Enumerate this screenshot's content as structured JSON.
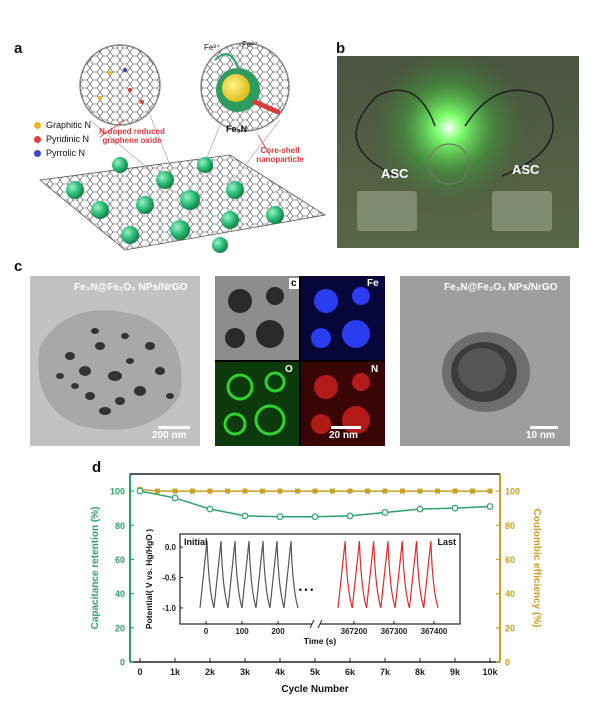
{
  "panels": {
    "a": "a",
    "b": "b",
    "c": "c",
    "d": "d"
  },
  "schematic": {
    "legend": [
      {
        "label": "Graphitic N",
        "color": "#f2b51e"
      },
      {
        "label": "Pyridinic N",
        "color": "#e0433b"
      },
      {
        "label": "Pyrrolic N",
        "color": "#3a46c4"
      }
    ],
    "callout_rgo": "N-doped reduced graphene oxide",
    "callout_np": "Core-shell nanoparticle",
    "core_label": "Fe₃N",
    "shell_label": "Fe₂O₃",
    "ion_left": "Fe³⁺",
    "ion_right": "Fe²⁺"
  },
  "photo": {
    "label_left": "ASC",
    "label_right": "ASC"
  },
  "tem": {
    "left_caption": "Fe₃N@Fe₂O₃ NPs/NrGO",
    "left_scale": "200 nm",
    "eds_inner_letter": "c",
    "eds_labels": [
      "Fe",
      "O",
      "N"
    ],
    "eds_scale": "20 nm",
    "right_caption": "Fe₃N@Fe₂O₃ NPs/NrGO",
    "right_scale": "10 nm"
  },
  "chart_data": [
    {
      "type": "line",
      "xlabel": "Cycle Number",
      "ylabel": "Capacitance retention (%)",
      "y2label": "Coulombic efficiency (%)",
      "x_ticks": [
        "0",
        "1k",
        "2k",
        "3k",
        "4k",
        "5k",
        "6k",
        "7k",
        "8k",
        "9k",
        "10k"
      ],
      "ylim": [
        0,
        110
      ],
      "y_ticks": [
        0,
        20,
        40,
        60,
        80,
        100
      ],
      "y2lim": [
        0,
        110
      ],
      "y2_ticks": [
        0,
        20,
        40,
        60,
        80,
        100
      ],
      "colors": {
        "retention": "#2aa36a",
        "efficiency": "#c9a027"
      },
      "series": [
        {
          "axis": "left",
          "x": [
            0,
            1000,
            2000,
            3000,
            4000,
            5000,
            6000,
            7000,
            8000,
            9000,
            10000
          ],
          "values": [
            100,
            96,
            89.5,
            85.5,
            85,
            85,
            85.5,
            87.5,
            89.5,
            90,
            91
          ]
        },
        {
          "axis": "right",
          "x": [
            0,
            500,
            1000,
            1500,
            2000,
            2500,
            3000,
            3500,
            4000,
            4500,
            5000,
            5500,
            6000,
            6500,
            7000,
            7500,
            8000,
            8500,
            9000,
            9500,
            10000
          ],
          "values": [
            101,
            100,
            100,
            100,
            100,
            100,
            100,
            100,
            100,
            100,
            100,
            100,
            100,
            100,
            100,
            100,
            100,
            100,
            100,
            100,
            100
          ]
        }
      ]
    },
    {
      "type": "line",
      "xlabel": "Time (s)",
      "ylabel": "Potential( V vs. Hg/HgO )",
      "ylim": [
        -1.1,
        0.15
      ],
      "y_ticks": [
        "0.0",
        "-0.5",
        "-1.0"
      ],
      "x_ticks_initial": [
        "0",
        "100",
        "200"
      ],
      "x_ticks_last": [
        "367200",
        "367300",
        "367400"
      ],
      "initial_label": "Initial",
      "last_label": "Last",
      "ellipsis": "• • •",
      "colors": {
        "initial": "#555555",
        "last": "#e02a2a"
      },
      "cycles_per_segment": 7,
      "v_min": -1.0,
      "v_max": 0.1
    }
  ]
}
